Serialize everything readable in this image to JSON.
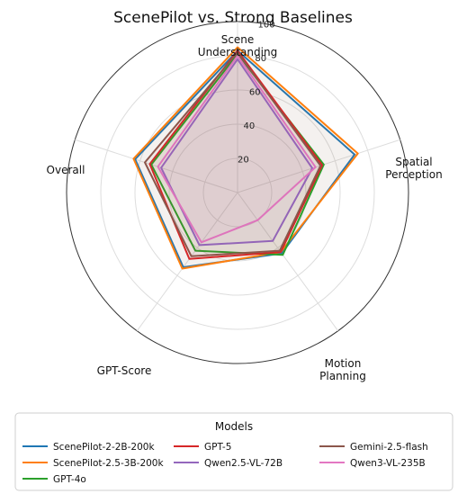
{
  "chart_data": {
    "type": "radar",
    "title": "ScenePilot vs. Strong Baselines",
    "axes": [
      {
        "label_lines": [
          "Scene",
          "Understanding"
        ]
      },
      {
        "label_lines": [
          "Spatial",
          "Perception"
        ]
      },
      {
        "label_lines": [
          "Motion",
          "Planning"
        ]
      },
      {
        "label_lines": [
          "GPT-Score"
        ]
      },
      {
        "label_lines": [
          "Overall"
        ]
      }
    ],
    "r_range": [
      0,
      100
    ],
    "r_ticks": [
      "20",
      "40",
      "60",
      "80",
      "100"
    ],
    "r_tick_values": [
      20,
      40,
      60,
      80,
      100
    ],
    "grid": true,
    "legend": {
      "title": "Models",
      "placement": "bottom",
      "columns": 3
    },
    "series": [
      {
        "name": "ScenePilot-2-2B-200k",
        "color": "#1f77b4",
        "values": [
          83,
          72,
          44,
          54,
          63
        ]
      },
      {
        "name": "ScenePilot-2.5-3B-200k",
        "color": "#ff7f0e",
        "values": [
          85,
          74,
          43,
          55,
          64
        ]
      },
      {
        "name": "GPT-4o",
        "color": "#2ca02c",
        "values": [
          81,
          53,
          45,
          42,
          53
        ]
      },
      {
        "name": "GPT-5",
        "color": "#d62728",
        "values": [
          83,
          52,
          43,
          48,
          54
        ]
      },
      {
        "name": "Qwen2.5-VL-72B",
        "color": "#9467bd",
        "values": [
          78,
          46,
          35,
          38,
          47
        ]
      },
      {
        "name": "Qwen3-VL-235B",
        "color": "#e377c2",
        "values": [
          80,
          48,
          20,
          36,
          49
        ]
      },
      {
        "name": "Gemini-2.5-flash",
        "color": "#8c564b",
        "values": [
          82,
          51,
          42,
          46,
          57
        ]
      }
    ],
    "legend_order": [
      "ScenePilot-2-2B-200k",
      "GPT-5",
      "Gemini-2.5-flash",
      "ScenePilot-2.5-3B-200k",
      "Qwen2.5-VL-72B",
      "Qwen3-VL-235B",
      "GPT-4o"
    ]
  }
}
